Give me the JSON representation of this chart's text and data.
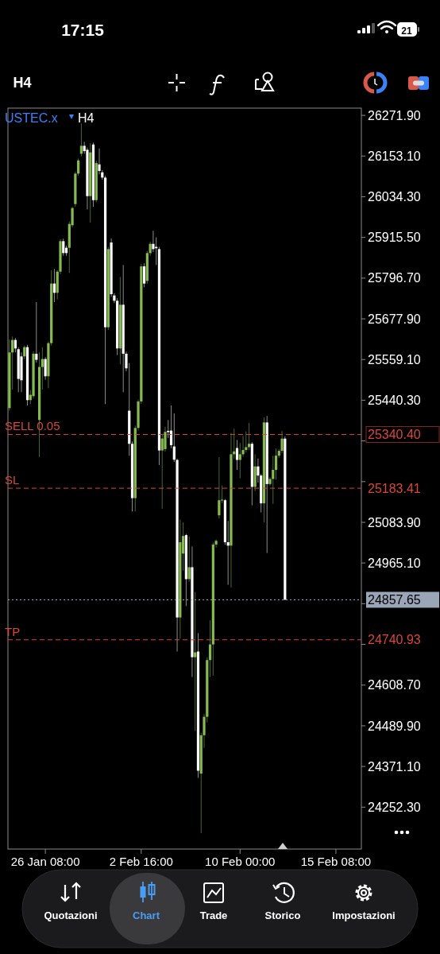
{
  "chart_data": {
    "type": "candlestick",
    "title": "USTEC.x",
    "subtitle": "H4",
    "annotations": [
      "17:15",
      "21",
      "H4",
      "Quotazioni",
      "Chart",
      "Trade",
      "Storico",
      "Impostazioni",
      "25340.40",
      "25183.41",
      "24740.93",
      "24857.65"
    ],
    "colors": [
      "#86bb4f",
      "#86bb4f",
      "#ffffff",
      "#ffffff",
      "#ffffff",
      "#86bb4f",
      "#ffffff",
      "#86bb4f",
      "#86bb4f",
      "#ffffff",
      "#86bb4f",
      "#86bb4f",
      "#ffffff",
      "#86bb4f",
      "#86bb4f",
      "#ffffff",
      "#86bb4f",
      "#86bb4f",
      "#ffffff",
      "#ffffff",
      "#86bb4f",
      "#86bb4f",
      "#86bb4f",
      "#86bb4f",
      "#86bb4f",
      "#ffffff",
      "#ffffff",
      "#86bb4f",
      "#ffffff",
      "#86bb4f",
      "#ffffff",
      "#ffffff",
      "#ffffff",
      "#86bb4f",
      "#ffffff",
      "#ffffff",
      "#ffffff",
      "#86bb4f",
      "#ffffff",
      "#ffffff",
      "#ffffff",
      "#ffffff",
      "#86bb4f",
      "#86bb4f",
      "#86bb4f",
      "#ffffff",
      "#86bb4f",
      "#86bb4f",
      "#ffffff",
      "#ffffff",
      "#ffffff",
      "#86bb4f",
      "#86bb4f",
      "#ffffff",
      "#ffffff",
      "#ffffff",
      "#ffffff",
      "#86bb4f",
      "#86bb4f",
      "#ffffff",
      "#86bb4f",
      "#ffffff",
      "#86bb4f",
      "#ffffff",
      "#86bb4f",
      "#86bb4f",
      "#86bb4f",
      "#86bb4f",
      "#86bb4f",
      "#86bb4f",
      "#86bb4f",
      "#86bb4f",
      "#ffffff",
      "#ffffff",
      "#86bb4f",
      "#86bb4f",
      "#ffffff",
      "#86bb4f",
      "#86bb4f",
      "#86bb4f",
      "#86bb4f",
      "#ffffff",
      "#86bb4f",
      "#ffffff",
      "#ffffff",
      "#86bb4f",
      "#ffffff",
      "#86bb4f",
      "#86bb4f",
      "#86bb4f",
      "#86bb4f",
      "#86bb4f",
      "#ffffff",
      null,
      null,
      null,
      null,
      null,
      null,
      null,
      null,
      null,
      null,
      null,
      null,
      null,
      null,
      null,
      null,
      null,
      null,
      null,
      null,
      null,
      null,
      null,
      null,
      null
    ],
    "categories": [
      null,
      null,
      null,
      null,
      null,
      null,
      null,
      null,
      null,
      null,
      null,
      null,
      "26 Jan 08:00",
      null,
      null,
      null,
      null,
      null,
      null,
      null,
      null,
      null,
      null,
      null,
      null,
      null,
      null,
      null,
      null,
      null,
      null,
      null,
      null,
      null,
      null,
      null,
      null,
      null,
      null,
      null,
      null,
      null,
      null,
      null,
      "2 Feb 16:00",
      null,
      null,
      null,
      null,
      null,
      null,
      null,
      null,
      null,
      null,
      null,
      null,
      null,
      null,
      null,
      null,
      null,
      null,
      null,
      null,
      null,
      null,
      null,
      null,
      null,
      null,
      null,
      null,
      null,
      null,
      null,
      null,
      "10 Feb 00:00",
      null,
      null,
      null,
      null,
      null,
      null,
      null,
      null,
      null,
      null,
      null,
      null,
      null,
      null,
      null,
      null,
      null,
      null,
      null,
      null,
      null,
      null,
      null,
      null,
      null,
      null,
      null,
      null,
      null,
      null,
      null,
      "15 Feb 08:00",
      null,
      null,
      null,
      null,
      null,
      null,
      null,
      null
    ],
    "ohlc": [
      [
        25417.4,
        25618,
        25410,
        25579.8
      ],
      [
        25579.8,
        25626.2,
        25471.5,
        25616.2
      ],
      [
        25616.2,
        25622,
        25580,
        25591.4
      ],
      [
        25589.1,
        25595,
        25463.8,
        25502.5
      ],
      [
        25568.2,
        25579.8,
        25463.8,
        25498.6
      ],
      [
        25568.2,
        25600,
        25560,
        25595.3
      ],
      [
        25595.3,
        25602,
        25425.1,
        25440.6
      ],
      [
        25440.6,
        25470,
        25429,
        25456.1
      ],
      [
        25452.2,
        25583,
        25445,
        25576
      ],
      [
        25576,
        25726.8,
        25550,
        25558.2
      ],
      [
        25382.6,
        25579.8,
        25274.4,
        25537.3
      ],
      [
        25537.3,
        25595.3,
        25471.5,
        25560.5
      ],
      [
        25560.5,
        25566,
        25500,
        25510.2
      ],
      [
        25510.2,
        25612,
        25475.4,
        25606.9
      ],
      [
        25606.9,
        25819.5,
        25600,
        25780.9
      ],
      [
        25780.9,
        25823.4,
        25726.8,
        25753.8
      ],
      [
        25753.8,
        25819.5,
        25734.5,
        25815.7
      ],
      [
        25815.7,
        25910,
        25808,
        25904.6
      ],
      [
        25904.6,
        25912,
        25862,
        25869.8
      ],
      [
        25885.3,
        25892,
        25862,
        25869.8
      ],
      [
        25885.3,
        25962,
        25811.8,
        25954.9
      ],
      [
        25951,
        26005.1,
        25945,
        26001.3
      ],
      [
        26012.9,
        26108,
        26005,
        26101.8
      ],
      [
        26101.8,
        26146,
        26095,
        26140.4
      ],
      [
        26159.8,
        26248.7,
        26152,
        26183
      ],
      [
        26183,
        26194.6,
        26160,
        26167.5
      ],
      [
        26171.4,
        26178,
        25997.4,
        26036.1
      ],
      [
        26036.1,
        26190.7,
        25958.7,
        26163.7
      ],
      [
        26186.8,
        26192,
        26005.1,
        26024.4
      ],
      [
        26024.4,
        26140,
        26018,
        26132.7
      ],
      [
        26128.8,
        26175.2,
        26100,
        26109.5
      ],
      [
        26105.6,
        26112,
        26084,
        26090.2
      ],
      [
        26090.2,
        26096,
        25429,
        25653.3
      ],
      [
        25653.3,
        25888,
        25646,
        25881.4
      ],
      [
        25900.7,
        25912.3,
        25742,
        25749.9
      ],
      [
        25746.1,
        25752,
        25724,
        25730.6
      ],
      [
        25730.6,
        25738,
        25572.1,
        25591.4
      ],
      [
        25591.4,
        25800.2,
        25545.1,
        25719
      ],
      [
        25719,
        25835,
        25463.8,
        25576
      ],
      [
        25576,
        25582,
        25525,
        25533.4
      ],
      [
        25409.7,
        25548.9,
        25278.2,
        25313
      ],
      [
        25313,
        25320,
        25115.8,
        25154.5
      ],
      [
        25154.5,
        25366,
        25115.8,
        25359.4
      ],
      [
        25359.4,
        25442,
        25352,
        25436.7
      ],
      [
        25436.7,
        25838,
        25430,
        25831.1
      ],
      [
        25831.1,
        25840,
        25770,
        25780.9
      ],
      [
        25788.6,
        25876,
        25780,
        25869.8
      ],
      [
        25869.8,
        25903,
        25862,
        25896.8
      ],
      [
        25896.8,
        25935,
        25873,
        25881.4
      ],
      [
        25888,
        25916,
        25835,
        25884
      ],
      [
        25881.4,
        25888,
        25251.1,
        25293.7
      ],
      [
        25293.7,
        25340,
        25123.5,
        25328.5
      ],
      [
        25297.5,
        25363,
        25290,
        25347.8
      ],
      [
        25351,
        25382.6,
        25330,
        25347
      ],
      [
        25351.7,
        25425.1,
        25300,
        25309.1
      ],
      [
        25305.3,
        25401.9,
        25260,
        25266.6
      ],
      [
        25266,
        25270,
        24706.7,
        24806.1
      ],
      [
        24806.1,
        25092,
        24744,
        25025.7
      ],
      [
        24992.6,
        25083.7,
        24943,
        25043.9
      ],
      [
        25046.4,
        25050,
        24839.3,
        24918
      ],
      [
        24918,
        25042.3,
        24910,
        24952.8
      ],
      [
        24952.8,
        25013.3,
        24632.1,
        24690.1
      ],
      [
        24690.1,
        24880.7,
        24474.7,
        24704.2
      ],
      [
        24706.7,
        24760.6,
        24338,
        24358.7
      ],
      [
        24350.4,
        24470,
        24176.4,
        24462.2
      ],
      [
        24462.2,
        24525,
        24425,
        24516.1
      ],
      [
        24516.1,
        24690,
        24500,
        24681.8
      ],
      [
        24681.8,
        24797.9,
        24632.1,
        24727.4
      ],
      [
        24727.4,
        25025,
        24636.3,
        25019.1
      ],
      [
        25019.1,
        25034,
        25010,
        25029.9
      ],
      [
        25104.4,
        25274.3,
        25095,
        25148.3
      ],
      [
        25148,
        25191.4,
        25140,
        25150
      ],
      [
        25148.3,
        25152,
        25018,
        25025.7
      ],
      [
        25025.7,
        25087.9,
        24901.4,
        25015.8
      ],
      [
        25015.8,
        25344.7,
        24893.2,
        25282.6
      ],
      [
        25282.6,
        25357.2,
        25270,
        25290.9
      ],
      [
        25300.8,
        25324,
        25237,
        25266
      ],
      [
        25266,
        25315.7,
        25212.2,
        25282.6
      ],
      [
        25282.6,
        25336.4,
        25275,
        25295
      ],
      [
        25295,
        25348.9,
        25288,
        25303.3
      ],
      [
        25303.3,
        25373.7,
        25295,
        25313.2
      ],
      [
        25313.2,
        25318,
        25133.4,
        25187.3
      ],
      [
        25187.3,
        25282.6,
        25174.9,
        25247
      ],
      [
        25247,
        25270.2,
        25199.7,
        25220.4
      ],
      [
        25220.4,
        25225,
        25112.7,
        25139.2
      ],
      [
        25139.2,
        25390.3,
        25083.7,
        25375.4
      ],
      [
        25375.4,
        25394.4,
        24994.2,
        25195.6
      ],
      [
        25195.6,
        25216,
        25190,
        25210.5
      ],
      [
        25210.5,
        25278.4,
        25137.6,
        25237
      ],
      [
        25237,
        25299.2,
        25208,
        25278.4
      ],
      [
        25278.4,
        25297,
        25272,
        25292.5
      ],
      [
        25292.5,
        25350.5,
        25285,
        25328.2
      ],
      [
        25328.2,
        25335,
        24857.65,
        24857.65
      ],
      null,
      null,
      null,
      null,
      null,
      null,
      null,
      null,
      null,
      null,
      null,
      null,
      null,
      null,
      null,
      null,
      null,
      null,
      null,
      null,
      null,
      null,
      null,
      null,
      null
    ],
    "ylim": [
      24130,
      26293
    ],
    "yticks": [
      {
        "value": 26271.9,
        "label": "26271.90"
      },
      {
        "value": 26153.1,
        "label": "26153.10"
      },
      {
        "value": 26034.3,
        "label": "26034.30"
      },
      {
        "value": 25915.5,
        "label": "25915.50"
      },
      {
        "value": 25796.7,
        "label": "25796.70"
      },
      {
        "value": 25677.9,
        "label": "25677.90"
      },
      {
        "value": 25559.1,
        "label": "25559.10"
      },
      {
        "value": 25440.3,
        "label": "25440.30"
      },
      {
        "value": 25321.5,
        "label": null
      },
      {
        "value": 25202.7,
        "label": null
      },
      {
        "value": 25083.9,
        "label": "25083.90"
      },
      {
        "value": 24965.1,
        "label": "24965.10"
      },
      {
        "value": 24846.3,
        "label": null
      },
      {
        "value": 24727.5,
        "label": null
      },
      {
        "value": 24608.7,
        "label": "24608.70"
      },
      {
        "value": 24489.9,
        "label": "24489.90"
      },
      {
        "value": 24371.1,
        "label": "24371.10"
      },
      {
        "value": 24252.3,
        "label": "24252.30"
      }
    ],
    "ref_lines": [
      {
        "axis": "y",
        "value": 25340.4,
        "label": "SELL 0.05",
        "color": "#d9463a",
        "line_style": "dashed"
      },
      {
        "axis": "y",
        "value": 25183.41,
        "label": "SL",
        "color": "#d9463a",
        "line_style": "dashed"
      },
      {
        "axis": "y",
        "value": 24740.93,
        "label": "TP",
        "color": "#d9463a",
        "line_style": "dashed"
      },
      {
        "axis": "y",
        "value": 24857.65,
        "label": null,
        "color": "#9aa6b8",
        "line_style": "dotted"
      }
    ]
  }
}
